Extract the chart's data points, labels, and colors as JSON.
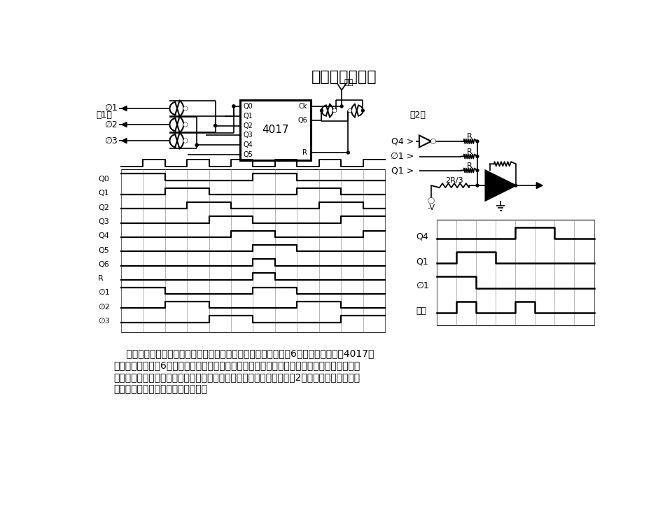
{
  "title": "三相方波发生器",
  "title_fontsize": 16,
  "bg_color": "#ffffff",
  "text_color": "#000000",
  "label1": "（1）",
  "label2": "（2）",
  "bottom_text_lines": [
    "    该电路给出三相方波输出供变速马达起动用。工作很简单，每隔6个时钟脉冲输入，4017计",
    "数器便同步复位。6个输出经过组合给出所需的波形。值得注意的是，虽然图中所示为或非门，",
    "但若采用或门也会得到同样的效果。如果需要，该电路还可附加以图（2）所示电路，以产生伪",
    "正弦波，但整个电路都变得复杂了。"
  ],
  "waveform_labels_left": [
    "Q0",
    "Q1",
    "Q2",
    "Q3",
    "Q4",
    "Q5",
    "Q6",
    "R",
    "∅1",
    "∅2",
    "∅3"
  ],
  "waveform_labels_right": [
    "Q4",
    "Q1",
    "∅1",
    "输出"
  ],
  "chip_label": "4017",
  "clock_label": "时钟",
  "chip_pins_left": [
    "Q0",
    "Q1",
    "Q2",
    "Q3",
    "Q4",
    "Q5"
  ],
  "chip_pins_right_top": [
    "Ck",
    "Q6"
  ],
  "chip_pin_right_bot": "R"
}
